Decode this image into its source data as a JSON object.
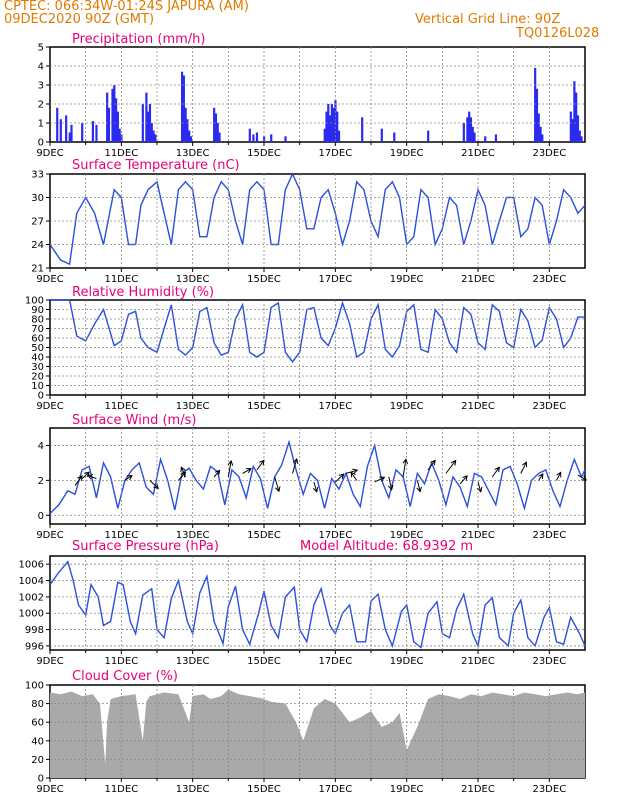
{
  "header": {
    "line1": "CPTEC:   066:34W-01:24S   JAPURA (AM)",
    "line2": "09DEC2020 90Z (GMT)",
    "grid_note": "Vertical Grid Line: 90Z",
    "code": "TQ0126L028"
  },
  "colors": {
    "header": "#e07b00",
    "title": "#e8007a",
    "line": "#2a4fdc",
    "bar": "#2a2af0",
    "cloud": "#a9a9a9"
  },
  "chart_data": [
    {
      "id": "precip",
      "type": "bar",
      "title": "Precipitation (mm/h)",
      "ylim": [
        0,
        5
      ],
      "yticks": [
        0,
        1,
        2,
        3,
        4,
        5
      ],
      "xticks": [
        "9DEC",
        "11DEC",
        "13DEC",
        "15DEC",
        "17DEC",
        "19DEC",
        "21DEC",
        "23DEC"
      ],
      "x_days": [
        0,
        15
      ],
      "values": [
        [
          0.2,
          1.8
        ],
        [
          0.3,
          1.2
        ],
        [
          0.45,
          1.4
        ],
        [
          0.55,
          0.5
        ],
        [
          0.6,
          0.9
        ],
        [
          0.9,
          1.0
        ],
        [
          1.2,
          1.1
        ],
        [
          1.3,
          0.9
        ],
        [
          1.6,
          2.6
        ],
        [
          1.65,
          1.8
        ],
        [
          1.75,
          2.8
        ],
        [
          1.8,
          3.0
        ],
        [
          1.85,
          2.3
        ],
        [
          1.9,
          1.6
        ],
        [
          1.95,
          0.7
        ],
        [
          2.0,
          0.4
        ],
        [
          2.6,
          2.0
        ],
        [
          2.7,
          2.6
        ],
        [
          2.75,
          1.6
        ],
        [
          2.8,
          2.0
        ],
        [
          2.85,
          1.0
        ],
        [
          2.9,
          0.6
        ],
        [
          2.95,
          0.4
        ],
        [
          3.7,
          3.7
        ],
        [
          3.75,
          3.5
        ],
        [
          3.8,
          1.8
        ],
        [
          3.85,
          1.2
        ],
        [
          3.9,
          0.6
        ],
        [
          3.95,
          0.3
        ],
        [
          4.6,
          1.8
        ],
        [
          4.65,
          1.5
        ],
        [
          4.7,
          1.0
        ],
        [
          4.75,
          0.5
        ],
        [
          5.6,
          0.7
        ],
        [
          5.7,
          0.4
        ],
        [
          5.8,
          0.5
        ],
        [
          6.0,
          0.3
        ],
        [
          6.2,
          0.4
        ],
        [
          6.6,
          0.3
        ],
        [
          7.7,
          0.7
        ],
        [
          7.75,
          1.6
        ],
        [
          7.8,
          2.0
        ],
        [
          7.85,
          1.4
        ],
        [
          7.9,
          2.0
        ],
        [
          7.95,
          1.8
        ],
        [
          8.0,
          2.2
        ],
        [
          8.05,
          1.6
        ],
        [
          8.1,
          0.6
        ],
        [
          8.75,
          1.3
        ],
        [
          9.3,
          0.7
        ],
        [
          9.65,
          0.5
        ],
        [
          10.6,
          0.6
        ],
        [
          11.6,
          1.0
        ],
        [
          11.7,
          1.3
        ],
        [
          11.75,
          1.6
        ],
        [
          11.8,
          1.3
        ],
        [
          11.85,
          0.8
        ],
        [
          11.9,
          0.5
        ],
        [
          12.2,
          0.3
        ],
        [
          12.5,
          0.4
        ],
        [
          13.6,
          3.9
        ],
        [
          13.65,
          2.8
        ],
        [
          13.7,
          1.5
        ],
        [
          13.75,
          0.8
        ],
        [
          13.8,
          0.4
        ],
        [
          14.6,
          1.6
        ],
        [
          14.65,
          1.2
        ],
        [
          14.7,
          3.2
        ],
        [
          14.75,
          2.6
        ],
        [
          14.8,
          1.4
        ],
        [
          14.85,
          0.6
        ],
        [
          14.9,
          0.3
        ]
      ]
    },
    {
      "id": "temp",
      "type": "line",
      "title": "Surface Temperature (nC)",
      "ylim": [
        21,
        33
      ],
      "yticks": [
        21,
        24,
        27,
        30,
        33
      ],
      "xticks": [
        "9DEC",
        "11DEC",
        "13DEC",
        "15DEC",
        "17DEC",
        "19DEC",
        "21DEC",
        "23DEC"
      ],
      "x_days": [
        0,
        15
      ],
      "x": [
        0,
        0.3,
        0.55,
        0.75,
        1.0,
        1.25,
        1.5,
        1.8,
        2.0,
        2.2,
        2.4,
        2.55,
        2.75,
        3.0,
        3.2,
        3.4,
        3.6,
        3.8,
        4.0,
        4.2,
        4.4,
        4.6,
        4.8,
        5.0,
        5.2,
        5.4,
        5.6,
        5.8,
        6.0,
        6.2,
        6.4,
        6.6,
        6.8,
        7.0,
        7.2,
        7.4,
        7.6,
        7.8,
        8.0,
        8.2,
        8.4,
        8.6,
        8.8,
        9.0,
        9.2,
        9.4,
        9.6,
        9.8,
        10.0,
        10.2,
        10.4,
        10.6,
        10.8,
        11.0,
        11.2,
        11.4,
        11.6,
        11.8,
        12.0,
        12.2,
        12.4,
        12.6,
        12.8,
        13.0,
        13.2,
        13.4,
        13.6,
        13.8,
        14.0,
        14.2,
        14.4,
        14.6,
        14.8,
        15.0
      ],
      "y": [
        24,
        22,
        21.5,
        28,
        30,
        28,
        24,
        31,
        30,
        24,
        24,
        29,
        31,
        32,
        28,
        24,
        31,
        32,
        31,
        25,
        25,
        30,
        32,
        31,
        27,
        24,
        31,
        32,
        31,
        24,
        24,
        31,
        33,
        31,
        26,
        26,
        30,
        31,
        28,
        24,
        27,
        32,
        31,
        27,
        25,
        31,
        32,
        30,
        24,
        25,
        31,
        30,
        24,
        26,
        30,
        29,
        24,
        27,
        31,
        29,
        24,
        27,
        30,
        30,
        25,
        26,
        30,
        29,
        24,
        27,
        31,
        30,
        28,
        29
      ]
    },
    {
      "id": "rh",
      "type": "line",
      "title": "Relative Humidity (%)",
      "ylim": [
        0,
        100
      ],
      "yticks": [
        0,
        10,
        20,
        30,
        40,
        50,
        60,
        70,
        80,
        90,
        100
      ],
      "xticks": [
        "9DEC",
        "11DEC",
        "13DEC",
        "15DEC",
        "17DEC",
        "19DEC",
        "21DEC",
        "23DEC"
      ],
      "x_days": [
        0,
        15
      ],
      "x": [
        0,
        0.3,
        0.55,
        0.75,
        1.0,
        1.25,
        1.5,
        1.8,
        2.0,
        2.2,
        2.4,
        2.55,
        2.75,
        3.0,
        3.2,
        3.4,
        3.6,
        3.8,
        4.0,
        4.2,
        4.4,
        4.6,
        4.8,
        5.0,
        5.2,
        5.4,
        5.6,
        5.8,
        6.0,
        6.2,
        6.4,
        6.6,
        6.8,
        7.0,
        7.2,
        7.4,
        7.6,
        7.8,
        8.0,
        8.2,
        8.4,
        8.6,
        8.8,
        9.0,
        9.2,
        9.4,
        9.6,
        9.8,
        10.0,
        10.2,
        10.4,
        10.6,
        10.8,
        11.0,
        11.2,
        11.4,
        11.6,
        11.8,
        12.0,
        12.2,
        12.4,
        12.6,
        12.8,
        13.0,
        13.2,
        13.4,
        13.6,
        13.8,
        14.0,
        14.2,
        14.4,
        14.6,
        14.8,
        15.0
      ],
      "y": [
        100,
        100,
        100,
        62,
        57,
        75,
        90,
        52,
        57,
        85,
        88,
        60,
        50,
        45,
        70,
        95,
        48,
        42,
        50,
        88,
        92,
        55,
        42,
        45,
        80,
        95,
        45,
        40,
        45,
        92,
        97,
        45,
        35,
        45,
        90,
        92,
        60,
        52,
        70,
        97,
        75,
        40,
        45,
        80,
        95,
        48,
        40,
        52,
        88,
        95,
        48,
        45,
        90,
        80,
        55,
        45,
        92,
        85,
        55,
        48,
        95,
        88,
        55,
        50,
        90,
        78,
        50,
        58,
        92,
        80,
        50,
        60,
        82,
        82
      ]
    },
    {
      "id": "wind",
      "type": "line",
      "title": "Surface Wind (m/s)",
      "ylim": [
        -0.5,
        5
      ],
      "yticks": [
        0,
        2,
        4
      ],
      "xticks": [
        "9DEC",
        "11DEC",
        "13DEC",
        "15DEC",
        "17DEC",
        "19DEC",
        "21DEC",
        "23DEC"
      ],
      "x_days": [
        0,
        15
      ],
      "x": [
        0,
        0.25,
        0.5,
        0.7,
        0.9,
        1.1,
        1.3,
        1.5,
        1.7,
        1.9,
        2.1,
        2.3,
        2.5,
        2.7,
        2.9,
        3.1,
        3.3,
        3.5,
        3.7,
        3.9,
        4.1,
        4.3,
        4.5,
        4.7,
        4.9,
        5.1,
        5.3,
        5.5,
        5.7,
        5.9,
        6.1,
        6.3,
        6.5,
        6.7,
        6.9,
        7.1,
        7.3,
        7.5,
        7.7,
        7.9,
        8.1,
        8.3,
        8.5,
        8.7,
        8.9,
        9.1,
        9.3,
        9.5,
        9.7,
        9.9,
        10.1,
        10.3,
        10.5,
        10.7,
        10.9,
        11.1,
        11.3,
        11.5,
        11.7,
        11.9,
        12.1,
        12.3,
        12.5,
        12.7,
        12.9,
        13.1,
        13.3,
        13.5,
        13.7,
        13.9,
        14.1,
        14.3,
        14.5,
        14.7,
        14.9,
        15.0
      ],
      "y": [
        0.1,
        0.6,
        1.4,
        1.2,
        2.6,
        2.8,
        1.0,
        3.0,
        2.2,
        0.4,
        2.0,
        2.6,
        3.0,
        1.6,
        1.2,
        3.2,
        2.0,
        0.3,
        2.4,
        2.7,
        2.0,
        1.5,
        2.8,
        2.5,
        0.6,
        2.6,
        2.2,
        1.0,
        2.8,
        2.1,
        0.4,
        2.2,
        2.9,
        4.2,
        2.6,
        1.2,
        2.4,
        2.0,
        0.4,
        2.1,
        1.5,
        2.4,
        1.2,
        0.5,
        2.8,
        4.0,
        2.0,
        1.0,
        2.6,
        2.2,
        0.5,
        2.4,
        1.8,
        3.0,
        2.0,
        0.6,
        2.2,
        1.6,
        0.5,
        2.4,
        2.2,
        1.4,
        0.6,
        2.6,
        2.8,
        1.8,
        0.4,
        2.0,
        2.4,
        2.6,
        1.4,
        0.5,
        2.0,
        3.2,
        2.2,
        2.6
      ],
      "arrows": [
        [
          0.7,
          1.7,
          0.5,
          0.6
        ],
        [
          0.9,
          2.1,
          0.5,
          0.4
        ],
        [
          1.3,
          2.1,
          -0.6,
          0.2
        ],
        [
          2.1,
          2.0,
          0.5,
          0.3
        ],
        [
          2.8,
          2.0,
          0.6,
          -0.5
        ],
        [
          3.6,
          2.0,
          0.5,
          0.5
        ],
        [
          3.8,
          2.2,
          -0.3,
          0.6
        ],
        [
          4.6,
          2.2,
          0.4,
          0.4
        ],
        [
          5.0,
          2.2,
          0.2,
          1.0
        ],
        [
          5.4,
          2.4,
          0.6,
          0.3
        ],
        [
          5.8,
          2.6,
          0.5,
          0.6
        ],
        [
          6.3,
          2.2,
          0.3,
          -0.9
        ],
        [
          6.8,
          2.4,
          0.3,
          0.9
        ],
        [
          7.4,
          1.9,
          0.2,
          -0.6
        ],
        [
          8.0,
          1.9,
          0.6,
          0.5
        ],
        [
          8.3,
          2.4,
          0.8,
          0.2
        ],
        [
          8.6,
          2.0,
          -0.4,
          0.5
        ],
        [
          9.1,
          1.9,
          0.7,
          0.3
        ],
        [
          9.5,
          2.2,
          0.2,
          -0.8
        ],
        [
          9.9,
          2.2,
          0.2,
          1.1
        ],
        [
          10.3,
          2.0,
          0.2,
          -0.7
        ],
        [
          10.6,
          2.6,
          0.5,
          0.6
        ],
        [
          11.1,
          2.4,
          0.7,
          0.8
        ],
        [
          11.5,
          1.8,
          0.5,
          0.5
        ],
        [
          12.0,
          1.9,
          0.2,
          -0.6
        ],
        [
          12.4,
          2.2,
          0.5,
          0.6
        ],
        [
          13.2,
          2.4,
          0.4,
          0.7
        ],
        [
          13.7,
          2.0,
          0.3,
          0.4
        ],
        [
          14.2,
          2.0,
          0.3,
          0.5
        ],
        [
          14.8,
          2.3,
          0.6,
          -0.3
        ]
      ]
    },
    {
      "id": "pres",
      "type": "line",
      "title": "Surface Pressure (hPa)",
      "subtitle": "Model Altitude: 68.9392 m",
      "ylim": [
        995.5,
        1007
      ],
      "yticks": [
        996,
        998,
        1000,
        1002,
        1004,
        1006
      ],
      "xticks": [
        "9DEC",
        "11DEC",
        "13DEC",
        "15DEC",
        "17DEC",
        "19DEC",
        "21DEC",
        "23DEC"
      ],
      "x_days": [
        0,
        15
      ],
      "x": [
        0,
        0.25,
        0.5,
        0.65,
        0.8,
        1.0,
        1.15,
        1.35,
        1.5,
        1.7,
        1.9,
        2.05,
        2.25,
        2.4,
        2.6,
        2.85,
        3.0,
        3.2,
        3.4,
        3.6,
        3.85,
        4.0,
        4.2,
        4.4,
        4.6,
        4.85,
        5.0,
        5.2,
        5.4,
        5.6,
        5.85,
        6.0,
        6.2,
        6.4,
        6.6,
        6.85,
        7.0,
        7.2,
        7.4,
        7.6,
        7.85,
        8.0,
        8.2,
        8.4,
        8.6,
        8.85,
        9.0,
        9.2,
        9.4,
        9.6,
        9.85,
        10.0,
        10.2,
        10.4,
        10.6,
        10.85,
        11.0,
        11.2,
        11.4,
        11.6,
        11.85,
        12.0,
        12.2,
        12.4,
        12.6,
        12.85,
        13.0,
        13.2,
        13.4,
        13.6,
        13.85,
        14.0,
        14.2,
        14.4,
        14.6,
        14.85,
        15.0
      ],
      "y": [
        1003.5,
        1005,
        1006.3,
        1004,
        1001,
        999.8,
        1003.5,
        1002,
        998.5,
        999,
        1003.8,
        1003.5,
        999,
        997.5,
        1002.2,
        1003,
        998,
        997,
        1001.8,
        1004,
        999,
        997.5,
        1002.5,
        1004.5,
        999,
        996.3,
        1000.8,
        1003.3,
        998,
        996.2,
        1000,
        1002.7,
        998.5,
        997,
        1002,
        1003.2,
        998,
        996.5,
        1001,
        1003,
        998.5,
        997.5,
        1000,
        1001,
        996.5,
        996.5,
        1001.5,
        1002.3,
        998,
        996,
        1000.2,
        1001,
        996.5,
        995.8,
        1000,
        1001.4,
        997.5,
        997,
        1000.5,
        1002.3,
        997.5,
        996,
        1001,
        1001.9,
        997,
        996,
        1000,
        1001.6,
        997,
        996,
        999.5,
        1000.7,
        996.5,
        996.2,
        999.5,
        997.5,
        996
      ]
    },
    {
      "id": "cloud",
      "type": "area",
      "title": "Cloud Cover (%)",
      "ylim": [
        0,
        100
      ],
      "yticks": [
        0,
        20,
        40,
        60,
        80,
        100
      ],
      "xticks": [
        "9DEC",
        "11DEC",
        "13DEC",
        "15DEC",
        "17DEC",
        "19DEC",
        "21DEC",
        "23DEC"
      ],
      "x_days": [
        0,
        15
      ],
      "x": [
        0,
        0.3,
        0.6,
        0.9,
        1.2,
        1.4,
        1.55,
        1.6,
        1.7,
        2.0,
        2.4,
        2.6,
        2.7,
        2.8,
        3.2,
        3.6,
        3.9,
        4.0,
        4.3,
        4.5,
        4.8,
        5.0,
        5.3,
        5.6,
        5.9,
        6.2,
        6.6,
        6.9,
        7.1,
        7.4,
        7.7,
        8.0,
        8.2,
        8.4,
        8.7,
        9.0,
        9.3,
        9.6,
        9.8,
        10.0,
        10.3,
        10.6,
        10.9,
        11.2,
        11.5,
        11.8,
        12.1,
        12.4,
        12.7,
        13.0,
        13.3,
        13.6,
        13.9,
        14.2,
        14.5,
        14.8,
        15.0
      ],
      "y": [
        92,
        90,
        93,
        88,
        90,
        80,
        15,
        60,
        85,
        88,
        90,
        40,
        82,
        88,
        92,
        90,
        60,
        88,
        90,
        85,
        88,
        95,
        90,
        88,
        86,
        82,
        80,
        60,
        40,
        75,
        85,
        80,
        70,
        60,
        65,
        72,
        55,
        60,
        70,
        30,
        55,
        85,
        90,
        88,
        85,
        90,
        88,
        92,
        90,
        88,
        92,
        90,
        88,
        90,
        92,
        90,
        92
      ]
    }
  ]
}
